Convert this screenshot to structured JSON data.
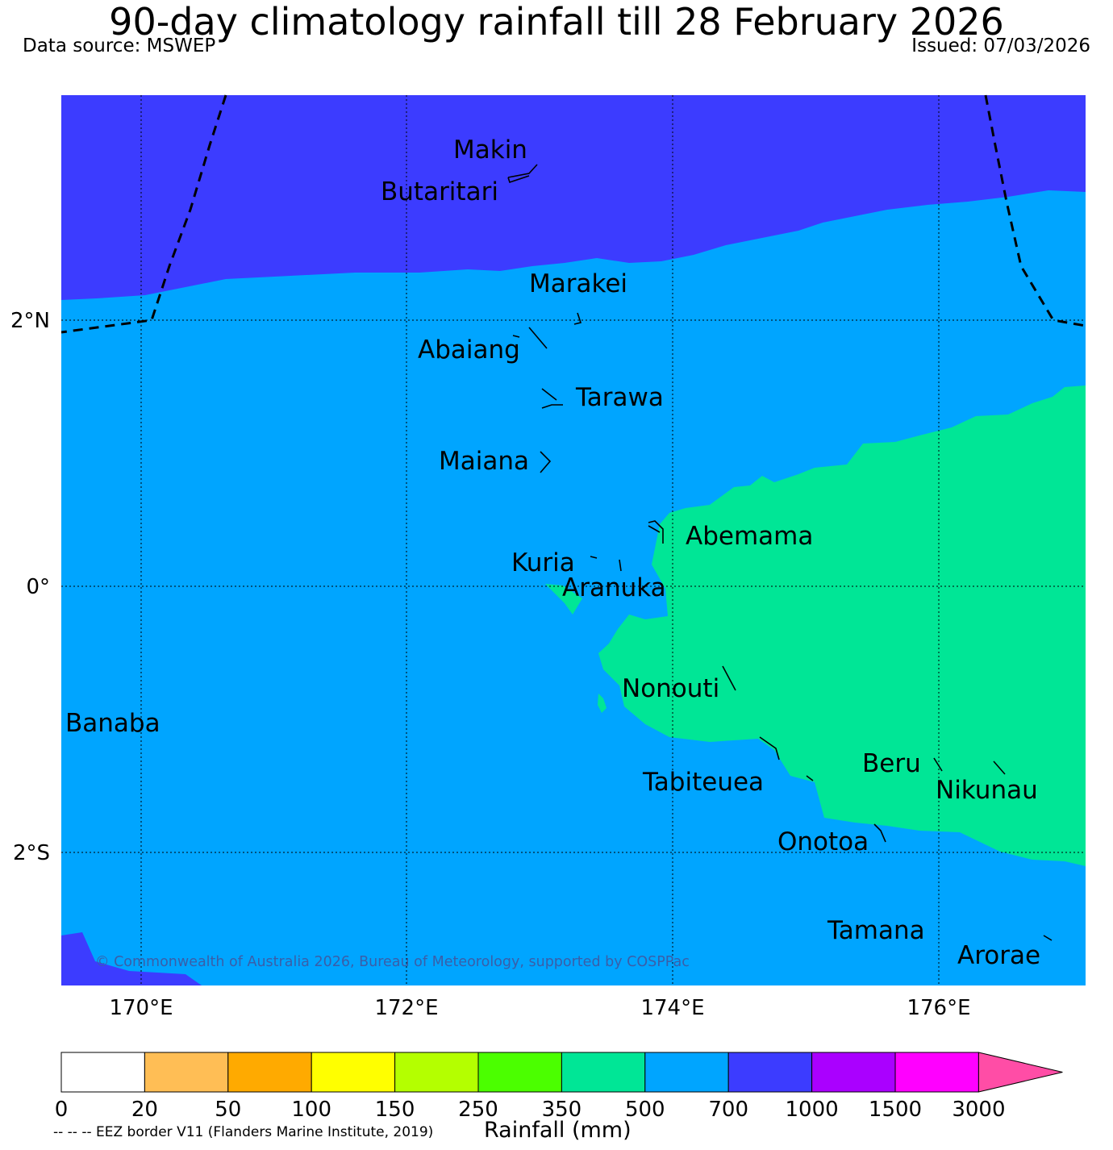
{
  "title": "90-day climatology rainfall till 28 February 2026",
  "data_source": "Data source: MSWEP",
  "issued": "Issued: 07/03/2026",
  "copyright": "© Commonwealth of Australia 2026, Bureau of Meteorology, supported by COSPPac",
  "eez_note": "-- -- -- EEZ border V11 (Flanders Marine Institute, 2019)",
  "axes": {
    "x_ticks": [
      "170°E",
      "172°E",
      "174°E",
      "176°E"
    ],
    "y_ticks": [
      "2°N",
      "0°",
      "2°S"
    ]
  },
  "islands": [
    "Makin",
    "Butaritari",
    "Marakei",
    "Abaiang",
    "Tarawa",
    "Maiana",
    "Abemama",
    "Kuria",
    "Aranuka",
    "Nonouti",
    "Banaba",
    "Tabiteuea",
    "Beru",
    "Nikunau",
    "Onotoa",
    "Tamana",
    "Arorae"
  ],
  "colorbar": {
    "label": "Rainfall (mm)",
    "ticks": [
      "0",
      "20",
      "50",
      "100",
      "150",
      "250",
      "350",
      "500",
      "700",
      "1000",
      "1500",
      "3000"
    ],
    "colors": [
      "#ffffff",
      "#ffbe55",
      "#ffaa00",
      "#ffff00",
      "#b4ff00",
      "#4bff00",
      "#00e696",
      "#00a5ff",
      "#3c3cff",
      "#aa00ff",
      "#ff00ff",
      "#ff4da6"
    ]
  },
  "map_colors": {
    "band_700_1000": "#3c3cff",
    "band_500_700": "#00a5ff",
    "band_350_500": "#00e696"
  }
}
